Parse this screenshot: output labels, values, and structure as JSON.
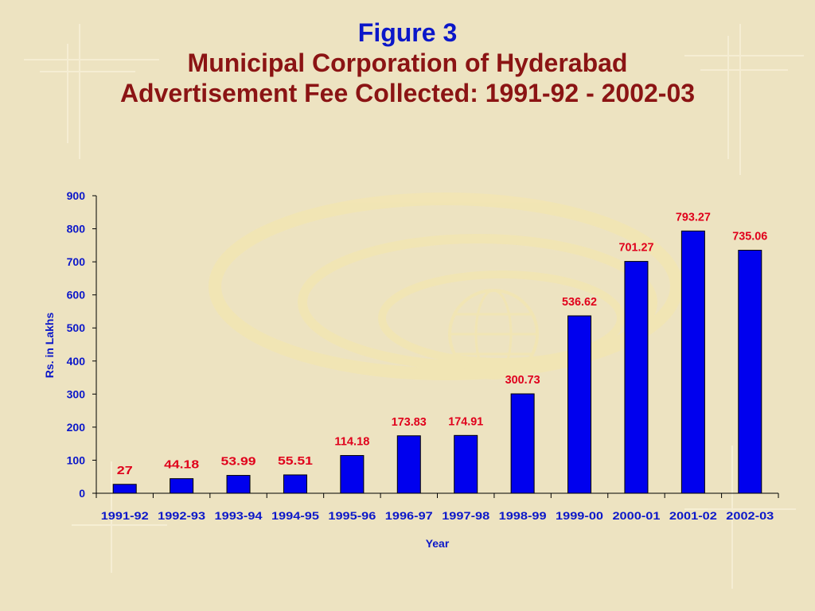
{
  "figure_label": "Figure  3",
  "title_line1": "Municipal Corporation of Hyderabad",
  "title_line2": "Advertisement Fee Collected: 1991-92 - 2002-03",
  "colors": {
    "background": "#ede3c1",
    "bar": "#0000ee",
    "value_label": "#e0001b",
    "axis_text": "#0b17c9",
    "title": "#8b1414",
    "figure_label": "#0b17c9"
  },
  "chart_data": {
    "type": "bar",
    "categories": [
      "1991-92",
      "1992-93",
      "1993-94",
      "1994-95",
      "1995-96",
      "1996-97",
      "1997-98",
      "1998-99",
      "1999-00",
      "2000-01",
      "2001-02",
      "2002-03"
    ],
    "values": [
      27,
      44.18,
      53.99,
      55.51,
      114.18,
      173.83,
      174.91,
      300.73,
      536.62,
      701.27,
      793.27,
      735.06
    ],
    "value_labels": [
      "27",
      "44.18",
      "53.99",
      "55.51",
      "114.18",
      "173.83",
      "174.91",
      "300.73",
      "536.62",
      "701.27",
      "793.27",
      "735.06"
    ],
    "xlabel": "Year",
    "ylabel": "Rs. in Lakhs",
    "ylim": [
      0,
      900
    ],
    "yticks": [
      0,
      100,
      200,
      300,
      400,
      500,
      600,
      700,
      800,
      900
    ],
    "grid": false,
    "legend": "none"
  }
}
